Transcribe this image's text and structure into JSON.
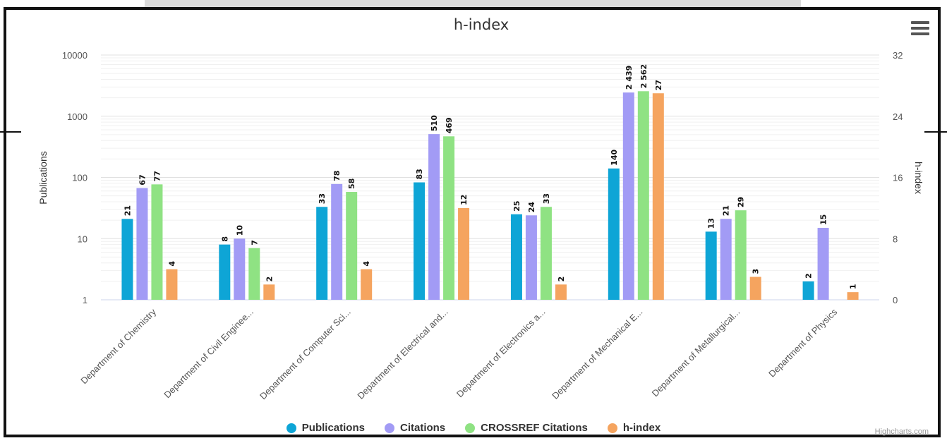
{
  "chart_data": {
    "type": "bar",
    "title": "h-index",
    "ylabel_left": "Publications",
    "ylabel_right": "h-index",
    "y_left_scale": "log",
    "y_left_ticks": [
      "1",
      "10",
      "100",
      "1000",
      "10000"
    ],
    "y_right_ticks": [
      "0",
      "8",
      "16",
      "24",
      "32"
    ],
    "categories": [
      "Department of Chemistry",
      "Department of Civil Enginee...",
      "Department of Computer Sci...",
      "Department of Electrical and...",
      "Department of Electronics a...",
      "Department of Mechanical E...",
      "Department of Metallurgical...",
      "Department of Physics"
    ],
    "series": [
      {
        "name": "Publications",
        "color": "#0ea5d6",
        "axis": "left",
        "values": [
          21,
          8,
          33,
          83,
          25,
          140,
          13,
          2
        ],
        "labels": [
          "21",
          "8",
          "33",
          "83",
          "25",
          "140",
          "13",
          "2"
        ]
      },
      {
        "name": "Citations",
        "color": "#a29bf5",
        "axis": "left",
        "values": [
          67,
          10,
          78,
          510,
          24,
          2439,
          21,
          15
        ],
        "labels": [
          "67",
          "10",
          "78",
          "510",
          "24",
          "2 439",
          "21",
          "15"
        ]
      },
      {
        "name": "CROSSREF Citations",
        "color": "#8fe283",
        "axis": "left",
        "values": [
          77,
          7,
          58,
          469,
          33,
          2562,
          29,
          null
        ],
        "labels": [
          "77",
          "7",
          "58",
          "469",
          "33",
          "2 562",
          "29",
          ""
        ]
      },
      {
        "name": "h-index",
        "color": "#f5a45f",
        "axis": "right",
        "values": [
          4,
          2,
          4,
          12,
          2,
          27,
          3,
          1
        ],
        "labels": [
          "4",
          "2",
          "4",
          "12",
          "2",
          "27",
          "3",
          "1"
        ]
      }
    ],
    "grid": true,
    "legend_position": "bottom"
  },
  "credits": "Highcharts.com"
}
